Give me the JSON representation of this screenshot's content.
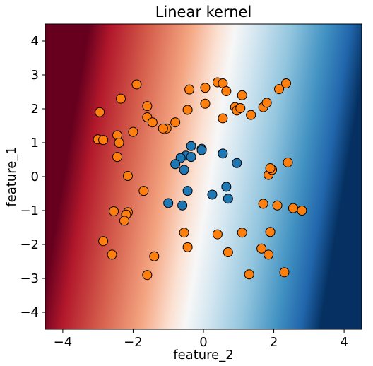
{
  "chart_data": {
    "type": "scatter",
    "title": "Linear kernel",
    "xlabel": "feature_2",
    "ylabel": "feature_1",
    "xlim": [
      -4.5,
      4.5
    ],
    "ylim": [
      -4.5,
      4.5
    ],
    "xticks": [
      -4,
      -2,
      0,
      2,
      4
    ],
    "yticks": [
      -4,
      -3,
      -2,
      -1,
      0,
      1,
      2,
      3,
      4
    ],
    "grid": false,
    "background": {
      "type": "decision_function",
      "colormap": "RdBu",
      "colors": {
        "low": "#67001f",
        "mid": "#f7f7f7",
        "high": "#053061"
      }
    },
    "series": [
      {
        "color": "#ff7f0e",
        "points": [
          [
            -2.95,
            1.9
          ],
          [
            -1.9,
            2.72
          ],
          [
            -2.35,
            2.3
          ],
          [
            -1.6,
            2.08
          ],
          [
            -1.6,
            1.75
          ],
          [
            -1.45,
            1.6
          ],
          [
            -1.05,
            1.42
          ],
          [
            -1.15,
            1.42
          ],
          [
            -0.8,
            1.6
          ],
          [
            -0.45,
            1.97
          ],
          [
            -0.4,
            2.57
          ],
          [
            0.05,
            2.62
          ],
          [
            0.05,
            2.15
          ],
          [
            0.4,
            2.78
          ],
          [
            0.55,
            2.75
          ],
          [
            0.65,
            2.52
          ],
          [
            1.1,
            2.4
          ],
          [
            0.9,
            2.05
          ],
          [
            0.95,
            1.95
          ],
          [
            1.05,
            2.02
          ],
          [
            0.55,
            1.72
          ],
          [
            1.35,
            1.82
          ],
          [
            1.7,
            2.05
          ],
          [
            1.8,
            2.18
          ],
          [
            2.15,
            2.58
          ],
          [
            2.35,
            2.75
          ],
          [
            -3.0,
            1.1
          ],
          [
            -2.85,
            1.08
          ],
          [
            -2.45,
            1.22
          ],
          [
            -2.4,
            1.0
          ],
          [
            -2.0,
            1.32
          ],
          [
            -2.45,
            0.58
          ],
          [
            -2.15,
            0.02
          ],
          [
            -1.7,
            -0.42
          ],
          [
            -2.55,
            -1.02
          ],
          [
            -2.15,
            -1.05
          ],
          [
            -2.2,
            -1.12
          ],
          [
            -2.25,
            -1.3
          ],
          [
            -2.85,
            -1.9
          ],
          [
            -2.6,
            -2.3
          ],
          [
            -1.4,
            -2.35
          ],
          [
            -1.6,
            -2.9
          ],
          [
            -0.55,
            -1.65
          ],
          [
            -0.45,
            -2.08
          ],
          [
            0.4,
            -1.7
          ],
          [
            0.7,
            -2.23
          ],
          [
            1.1,
            -1.65
          ],
          [
            1.3,
            -2.88
          ],
          [
            1.65,
            -2.12
          ],
          [
            1.85,
            -2.3
          ],
          [
            1.9,
            -1.63
          ],
          [
            2.3,
            -2.82
          ],
          [
            1.7,
            -0.8
          ],
          [
            2.1,
            -0.85
          ],
          [
            2.55,
            -0.93
          ],
          [
            2.8,
            -1.0
          ],
          [
            1.85,
            0.05
          ],
          [
            1.95,
            0.2
          ],
          [
            1.9,
            0.25
          ],
          [
            2.4,
            0.42
          ]
        ]
      },
      {
        "color": "#1f77b4",
        "points": [
          [
            -0.35,
            0.9
          ],
          [
            -0.5,
            0.62
          ],
          [
            -0.65,
            0.55
          ],
          [
            -0.35,
            0.58
          ],
          [
            -0.05,
            0.82
          ],
          [
            -0.05,
            0.78
          ],
          [
            0.55,
            0.68
          ],
          [
            -0.8,
            0.37
          ],
          [
            -0.55,
            0.2
          ],
          [
            0.95,
            0.4
          ],
          [
            -0.45,
            -0.42
          ],
          [
            -1.0,
            -0.78
          ],
          [
            -0.6,
            -0.85
          ],
          [
            0.25,
            -0.53
          ],
          [
            0.65,
            -0.3
          ],
          [
            0.7,
            -0.65
          ]
        ]
      }
    ]
  }
}
